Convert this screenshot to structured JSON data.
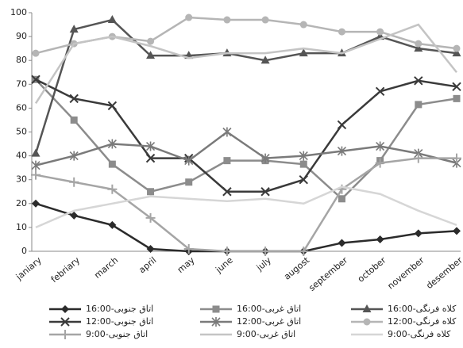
{
  "chart_data": {
    "type": "line",
    "categories": [
      "janiary",
      "febriary",
      "march",
      "april",
      "may",
      "june",
      "july",
      "augost",
      "september",
      "october",
      "november",
      "desember"
    ],
    "ylim": [
      0,
      100
    ],
    "yticks": [
      0,
      10,
      20,
      30,
      40,
      50,
      60,
      70,
      80,
      90,
      100
    ],
    "grid": false,
    "series": [
      {
        "name": "اتاق جنوبی-16:00",
        "color": "#2b2b2b",
        "marker": "diamond",
        "values": [
          20,
          15,
          11,
          1,
          0,
          0,
          0,
          0,
          3.5,
          5,
          7.5,
          8.5
        ]
      },
      {
        "name": "اتاق غربی-16:00",
        "color": "#8c8c8c",
        "marker": "square",
        "values": [
          72,
          55,
          36.5,
          25,
          29,
          38,
          38,
          36.5,
          22,
          38,
          61.5,
          64
        ]
      },
      {
        "name": "کلاه فرنگی-16:00",
        "color": "#555555",
        "marker": "triangle",
        "values": [
          41,
          93,
          97,
          82,
          82,
          83,
          80,
          83,
          83,
          90,
          85,
          83
        ]
      },
      {
        "name": "اتاق جنوبی-12:00",
        "color": "#3a3a3a",
        "marker": "x",
        "values": [
          72,
          64,
          61,
          39,
          39,
          25,
          25,
          30,
          53,
          67,
          71.5,
          69
        ]
      },
      {
        "name": "اتاق غربی-12:00",
        "color": "#7a7a7a",
        "marker": "star",
        "values": [
          36,
          40,
          45,
          44,
          38,
          50,
          39,
          40,
          42,
          44,
          41,
          37
        ]
      },
      {
        "name": "کلاه فرنگی-12:00",
        "color": "#b5b5b5",
        "marker": "circle",
        "values": [
          83,
          87,
          90,
          88,
          98,
          97,
          97,
          95,
          92,
          92,
          87,
          85
        ]
      },
      {
        "name": "اتاق جنوبی-9:00",
        "color": "#a5a5a5",
        "marker": "plus",
        "values": [
          32,
          29,
          26,
          14,
          1,
          0,
          0,
          0,
          26,
          37,
          39,
          39
        ]
      },
      {
        "name": "اتاق غربی-9:00",
        "color": "#c4c4c4",
        "marker": "none",
        "values": [
          62,
          87,
          90,
          86,
          81,
          83,
          83,
          85,
          83,
          89,
          95,
          75
        ]
      },
      {
        "name": "کلاه فرنگی-9:00",
        "color": "#d6d6d6",
        "marker": "none",
        "values": [
          10,
          17,
          20,
          23,
          22,
          21,
          22,
          20,
          27,
          24,
          17,
          11
        ]
      }
    ]
  }
}
